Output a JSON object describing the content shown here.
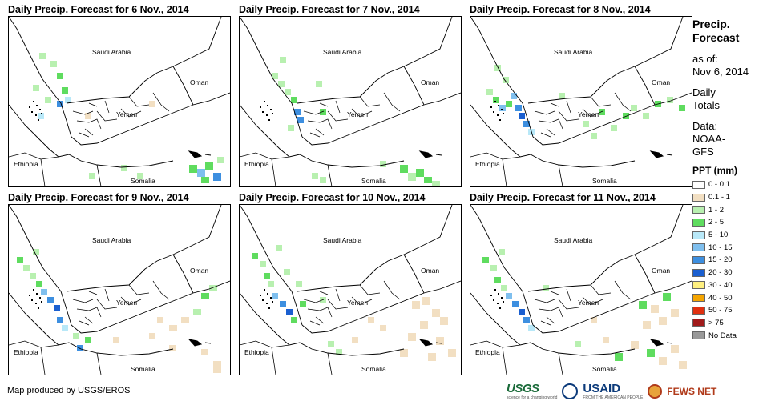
{
  "panels": [
    {
      "title": "Daily Precip. Forecast for 6 Nov., 2014"
    },
    {
      "title": "Daily Precip. Forecast for 7 Nov., 2014"
    },
    {
      "title": "Daily Precip. Forecast for 8 Nov., 2014"
    },
    {
      "title": "Daily Precip. Forecast for 9 Nov., 2014"
    },
    {
      "title": "Daily Precip. Forecast for 10 Nov., 2014"
    },
    {
      "title": "Daily Precip. Forecast for 11 Nov., 2014"
    }
  ],
  "map_labels": {
    "saudi": "Saudi Arabia",
    "oman": "Oman",
    "yemen": "Yemen",
    "ethiopia": "Ethiopia",
    "somalia": "Somalia"
  },
  "sidebar": {
    "title_line1": "Precip.",
    "title_line2": "Forecast",
    "asof_line1": "as of:",
    "asof_line2": "Nov 6, 2014",
    "totals_line1": "Daily",
    "totals_line2": "Totals",
    "data_line1": "Data:",
    "data_line2": "NOAA-",
    "data_line3": "GFS"
  },
  "legend": {
    "title": "PPT (mm)",
    "items": [
      {
        "label": "0 - 0.1",
        "color": "#ffffff"
      },
      {
        "label": "0.1 - 1",
        "color": "#f2dfc2"
      },
      {
        "label": "1 - 2",
        "color": "#b8f0b0"
      },
      {
        "label": "2 - 5",
        "color": "#5fdc5f"
      },
      {
        "label": "5 - 10",
        "color": "#b8e8f8"
      },
      {
        "label": "10 - 15",
        "color": "#7fbfee"
      },
      {
        "label": "15 - 20",
        "color": "#3d8fe0"
      },
      {
        "label": "20 - 30",
        "color": "#1a5fd0"
      },
      {
        "label": "30 - 40",
        "color": "#fff080"
      },
      {
        "label": "40 - 50",
        "color": "#f5a500"
      },
      {
        "label": "50 - 75",
        "color": "#e03010"
      },
      {
        "label": "> 75",
        "color": "#a01a1a"
      },
      {
        "label": "No Data",
        "color": "#999999"
      }
    ]
  },
  "footer": {
    "credit": "Map produced by USGS/EROS",
    "usgs": "USGS",
    "usgs_tag": "science for a changing world",
    "usaid": "USAID",
    "usaid_tag": "FROM THE AMERICAN PEOPLE",
    "fews": "FEWS NET"
  }
}
